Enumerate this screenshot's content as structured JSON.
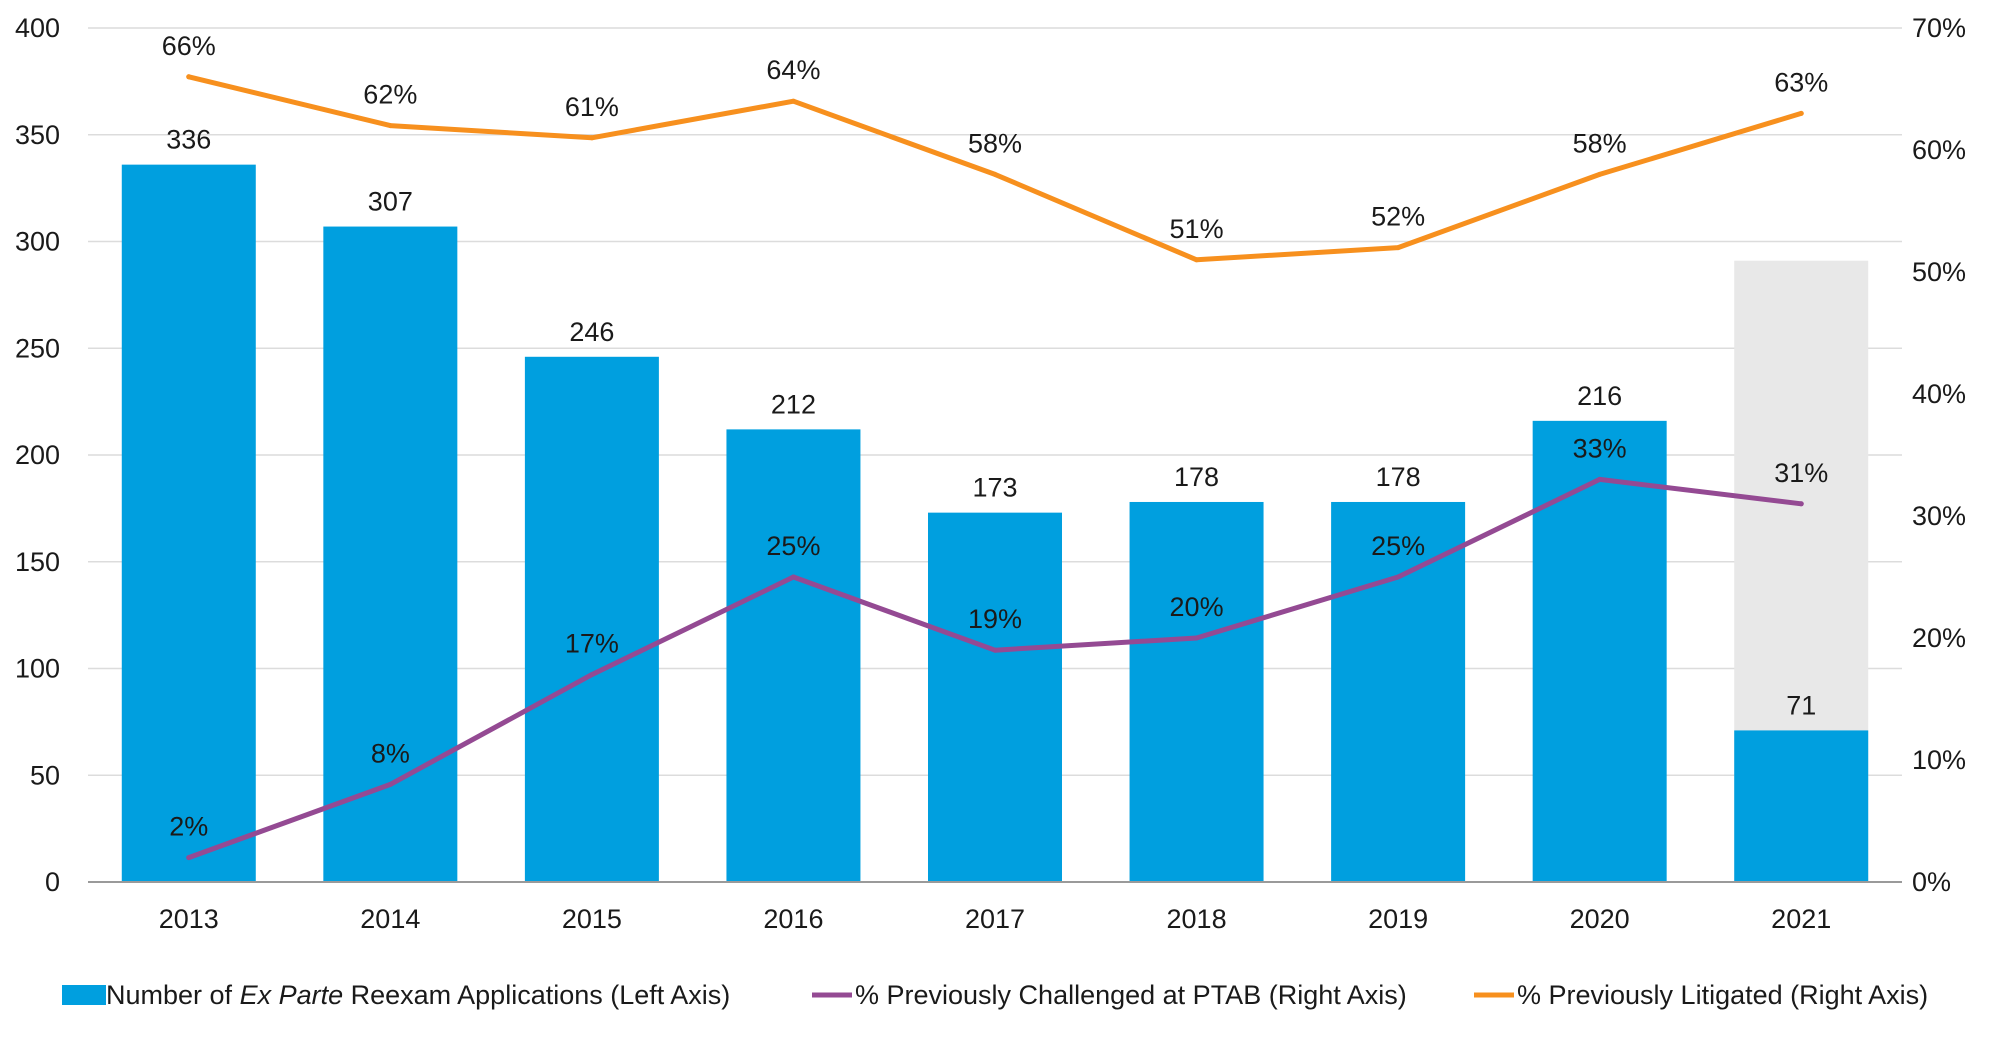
{
  "chart_data": {
    "type": "bar",
    "categories": [
      "2013",
      "2014",
      "2015",
      "2016",
      "2017",
      "2018",
      "2019",
      "2020",
      "2021"
    ],
    "left_axis": {
      "min": 0,
      "max": 400,
      "ticks": [
        "0",
        "50",
        "100",
        "150",
        "200",
        "250",
        "300",
        "350",
        "400"
      ]
    },
    "right_axis": {
      "min": 0,
      "max": 70,
      "ticks": [
        "0%",
        "10%",
        "20%",
        "30%",
        "40%",
        "50%",
        "60%",
        "70%"
      ]
    },
    "bars": {
      "name_prefix": "Number of ",
      "name_italic": "Ex Parte",
      "name_suffix": " Reexam Applications (Left Axis)",
      "values": [
        336,
        307,
        246,
        212,
        173,
        178,
        178,
        216,
        71
      ],
      "labels": [
        "336",
        "307",
        "246",
        "212",
        "173",
        "178",
        "178",
        "216",
        "71"
      ],
      "color": "#009fdf"
    },
    "highlight_bar": {
      "category": "2021",
      "value": 291,
      "color": "#e8e8e8"
    },
    "lines": [
      {
        "name": "% Previously Challenged at PTAB (Right Axis)",
        "values": [
          2,
          8,
          17,
          25,
          19,
          20,
          25,
          33,
          31
        ],
        "labels": [
          "2%",
          "8%",
          "17%",
          "25%",
          "19%",
          "20%",
          "25%",
          "33%",
          "31%"
        ],
        "color": "#944a93"
      },
      {
        "name": "% Previously Litigated (Right Axis)",
        "values": [
          66,
          62,
          61,
          64,
          58,
          51,
          52,
          58,
          63
        ],
        "labels": [
          "66%",
          "62%",
          "61%",
          "64%",
          "58%",
          "51%",
          "52%",
          "58%",
          "63%"
        ],
        "color": "#f7901e"
      }
    ],
    "grid": true,
    "legend": "bottom"
  }
}
